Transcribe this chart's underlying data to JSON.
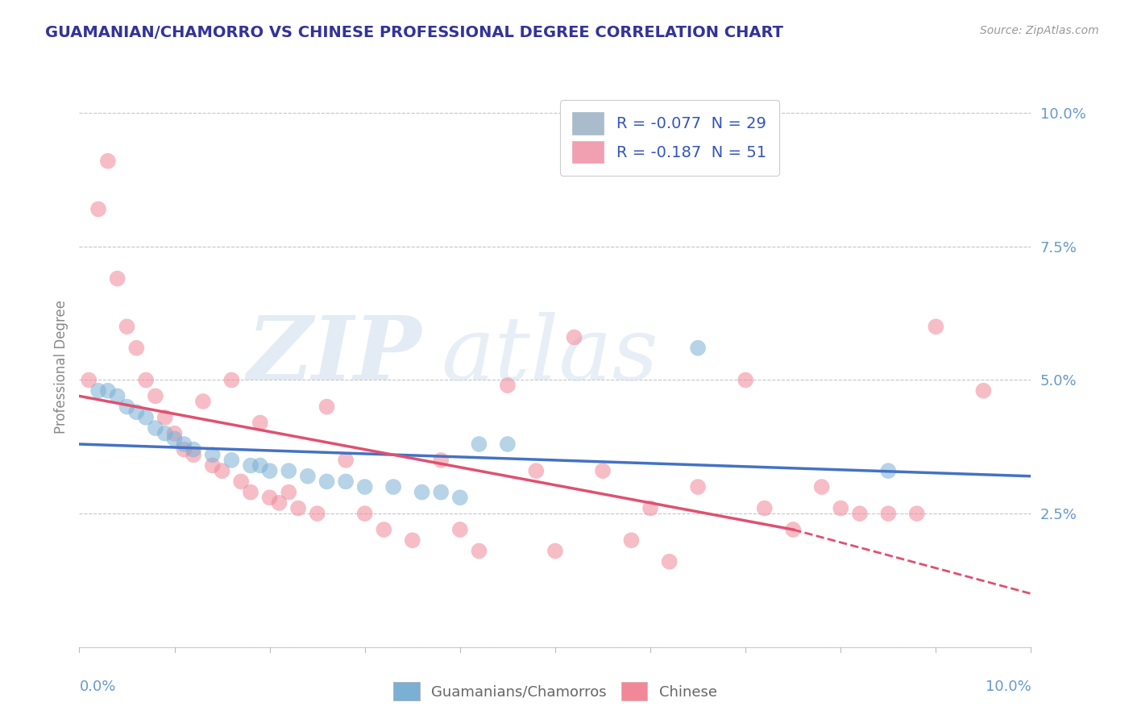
{
  "title": "GUAMANIAN/CHAMORRO VS CHINESE PROFESSIONAL DEGREE CORRELATION CHART",
  "source": "Source: ZipAtlas.com",
  "ylabel": "Professional Degree",
  "xlim": [
    0.0,
    0.1
  ],
  "ylim": [
    0.0,
    0.105
  ],
  "yticks": [
    0.0,
    0.025,
    0.05,
    0.075,
    0.1
  ],
  "ytick_labels": [
    "",
    "2.5%",
    "5.0%",
    "7.5%",
    "10.0%"
  ],
  "legend_line1": "R = -0.077  N = 29",
  "legend_line2": "R = -0.187  N = 51",
  "guamanian_points": [
    [
      0.002,
      0.048
    ],
    [
      0.003,
      0.048
    ],
    [
      0.004,
      0.047
    ],
    [
      0.005,
      0.045
    ],
    [
      0.006,
      0.044
    ],
    [
      0.007,
      0.043
    ],
    [
      0.008,
      0.041
    ],
    [
      0.009,
      0.04
    ],
    [
      0.01,
      0.039
    ],
    [
      0.011,
      0.038
    ],
    [
      0.012,
      0.037
    ],
    [
      0.014,
      0.036
    ],
    [
      0.016,
      0.035
    ],
    [
      0.018,
      0.034
    ],
    [
      0.019,
      0.034
    ],
    [
      0.02,
      0.033
    ],
    [
      0.022,
      0.033
    ],
    [
      0.024,
      0.032
    ],
    [
      0.026,
      0.031
    ],
    [
      0.028,
      0.031
    ],
    [
      0.03,
      0.03
    ],
    [
      0.033,
      0.03
    ],
    [
      0.036,
      0.029
    ],
    [
      0.038,
      0.029
    ],
    [
      0.04,
      0.028
    ],
    [
      0.042,
      0.038
    ],
    [
      0.045,
      0.038
    ],
    [
      0.065,
      0.056
    ],
    [
      0.085,
      0.033
    ]
  ],
  "chinese_points": [
    [
      0.001,
      0.05
    ],
    [
      0.002,
      0.082
    ],
    [
      0.003,
      0.091
    ],
    [
      0.004,
      0.069
    ],
    [
      0.005,
      0.06
    ],
    [
      0.006,
      0.056
    ],
    [
      0.007,
      0.05
    ],
    [
      0.008,
      0.047
    ],
    [
      0.009,
      0.043
    ],
    [
      0.01,
      0.04
    ],
    [
      0.011,
      0.037
    ],
    [
      0.012,
      0.036
    ],
    [
      0.013,
      0.046
    ],
    [
      0.014,
      0.034
    ],
    [
      0.015,
      0.033
    ],
    [
      0.016,
      0.05
    ],
    [
      0.017,
      0.031
    ],
    [
      0.018,
      0.029
    ],
    [
      0.019,
      0.042
    ],
    [
      0.02,
      0.028
    ],
    [
      0.021,
      0.027
    ],
    [
      0.022,
      0.029
    ],
    [
      0.023,
      0.026
    ],
    [
      0.025,
      0.025
    ],
    [
      0.026,
      0.045
    ],
    [
      0.028,
      0.035
    ],
    [
      0.03,
      0.025
    ],
    [
      0.032,
      0.022
    ],
    [
      0.035,
      0.02
    ],
    [
      0.038,
      0.035
    ],
    [
      0.04,
      0.022
    ],
    [
      0.042,
      0.018
    ],
    [
      0.045,
      0.049
    ],
    [
      0.048,
      0.033
    ],
    [
      0.05,
      0.018
    ],
    [
      0.052,
      0.058
    ],
    [
      0.055,
      0.033
    ],
    [
      0.058,
      0.02
    ],
    [
      0.06,
      0.026
    ],
    [
      0.062,
      0.016
    ],
    [
      0.065,
      0.03
    ],
    [
      0.07,
      0.05
    ],
    [
      0.072,
      0.026
    ],
    [
      0.075,
      0.022
    ],
    [
      0.078,
      0.03
    ],
    [
      0.08,
      0.026
    ],
    [
      0.082,
      0.025
    ],
    [
      0.085,
      0.025
    ],
    [
      0.088,
      0.025
    ],
    [
      0.09,
      0.06
    ],
    [
      0.095,
      0.048
    ]
  ],
  "guamanian_color": "#7bafd4",
  "chinese_color": "#f08898",
  "guamanian_line_color": "#4472c4",
  "chinese_line_color": "#e05070",
  "background_color": "#ffffff",
  "grid_color": "#c0c0c8",
  "title_color": "#333399",
  "source_color": "#999999",
  "axis_label_color": "#888888",
  "tick_label_color": "#6699cc",
  "legend_text_color": "#3355bb",
  "legend_box_color": "#aabbcc",
  "legend_box_color2": "#f0a0b0"
}
